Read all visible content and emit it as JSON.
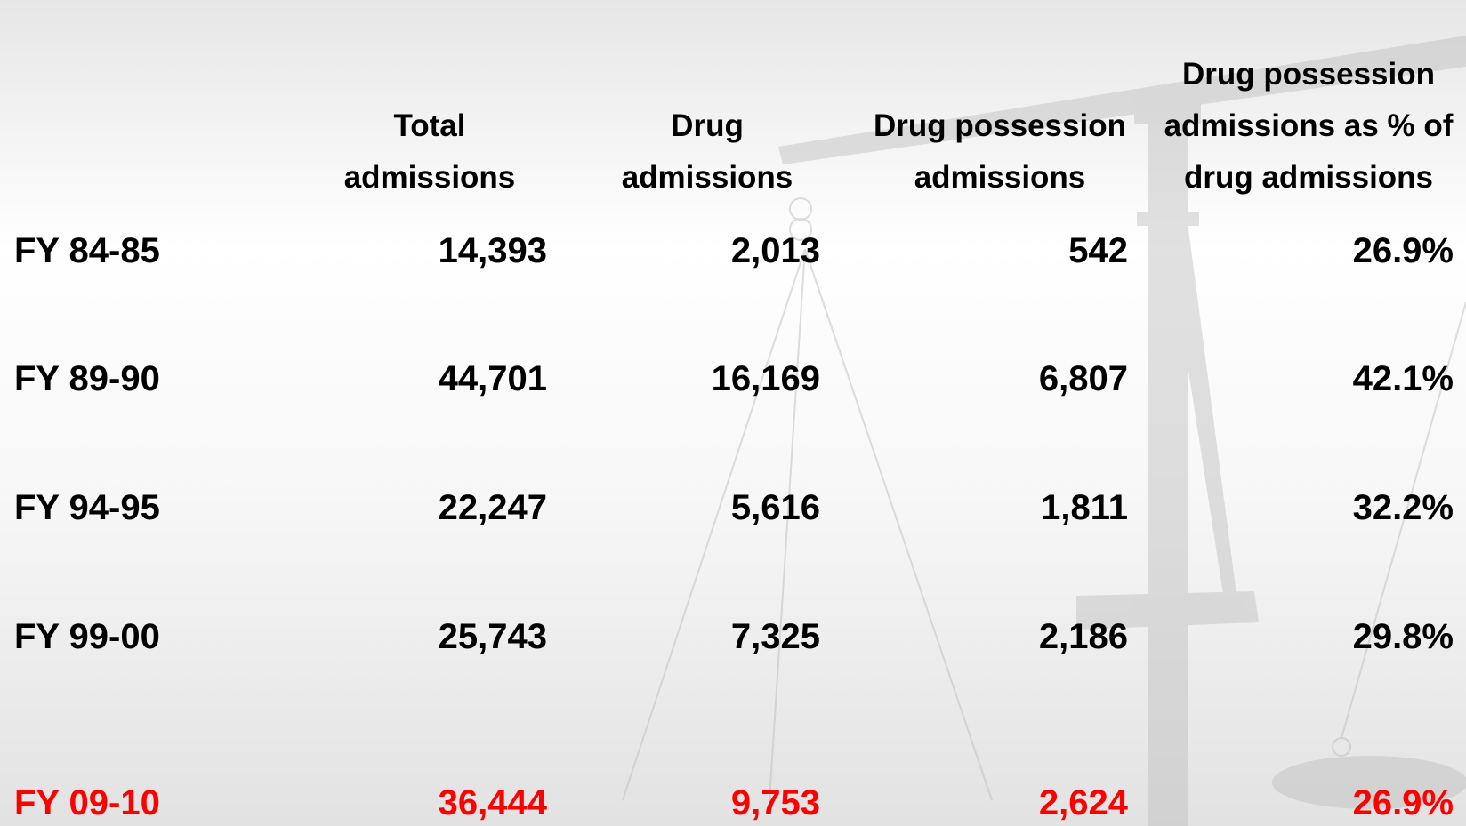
{
  "table": {
    "columns": [
      "Total admissions",
      "Drug admissions",
      "Drug possession admissions",
      "Drug possession admissions as % of drug admissions"
    ],
    "rows": [
      [
        "FY 84-85",
        "14,393",
        "2,013",
        "542",
        "26.9%"
      ],
      [
        "FY 89-90",
        "44,701",
        "16,169",
        "6,807",
        "42.1%"
      ],
      [
        "FY 94-95",
        "22,247",
        "5,616",
        "1,811",
        "32.2%"
      ],
      [
        "FY 99-00",
        "25,743",
        "7,325",
        "2,186",
        "29.8%"
      ],
      [
        "FY 09-10",
        "36,444",
        "9,753",
        "2,624",
        "26.9%"
      ]
    ]
  }
}
